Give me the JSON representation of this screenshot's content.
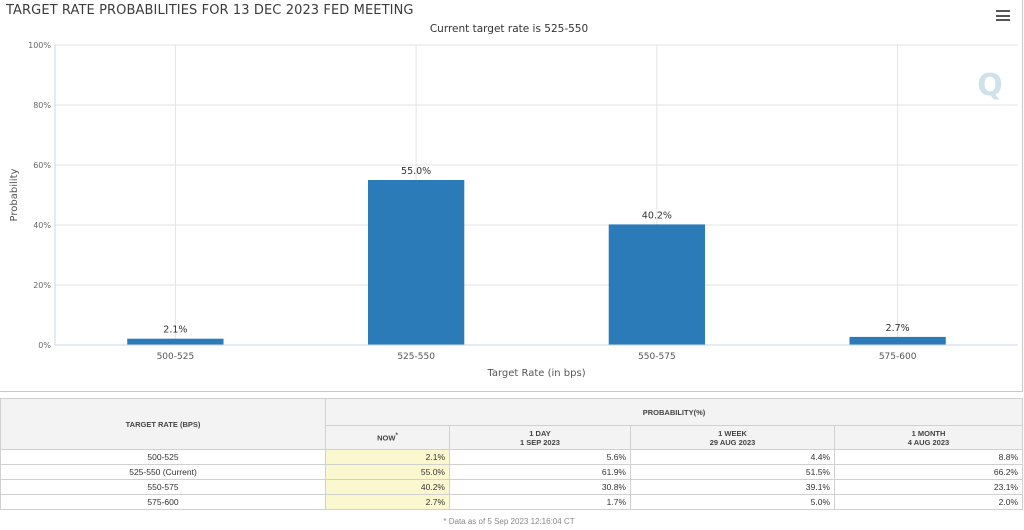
{
  "chart_data": {
    "type": "bar",
    "title": "TARGET RATE PROBABILITIES FOR 13 DEC 2023 FED MEETING",
    "subtitle": "Current target rate is 525-550",
    "categories": [
      "500-525",
      "525-550",
      "550-575",
      "575-600"
    ],
    "values": [
      2.1,
      55.0,
      40.2,
      2.7
    ],
    "data_labels": [
      "2.1%",
      "55.0%",
      "40.2%",
      "2.7%"
    ],
    "xlabel": "Target Rate (in bps)",
    "ylabel": "Probability",
    "ylim": [
      0,
      100
    ],
    "yticks": [
      0,
      20,
      40,
      60,
      80,
      100
    ],
    "ytick_labels": [
      "0%",
      "20%",
      "40%",
      "60%",
      "80%",
      "100%"
    ],
    "grid": true,
    "bar_color": "#2b7bb9"
  },
  "watermark": "Q",
  "menu_icon": "hamburger-menu-icon",
  "table": {
    "rate_header": "TARGET RATE (BPS)",
    "prob_header": "PROBABILITY(%)",
    "col_now": "NOW",
    "col_now_mark": "*",
    "col_1day": "1 DAY",
    "col_1day_date": "1 SEP 2023",
    "col_1week": "1 WEEK",
    "col_1week_date": "29 AUG 2023",
    "col_1month": "1 MONTH",
    "col_1month_date": "4 AUG 2023",
    "rows": [
      {
        "rate": "500-525",
        "now": "2.1%",
        "day": "5.6%",
        "week": "4.4%",
        "month": "8.8%"
      },
      {
        "rate": "525-550 (Current)",
        "now": "55.0%",
        "day": "61.9%",
        "week": "51.5%",
        "month": "66.2%"
      },
      {
        "rate": "550-575",
        "now": "40.2%",
        "day": "30.8%",
        "week": "39.1%",
        "month": "23.1%"
      },
      {
        "rate": "575-600",
        "now": "2.7%",
        "day": "1.7%",
        "week": "5.0%",
        "month": "2.0%"
      }
    ],
    "footnote": "* Data as of 5 Sep 2023 12:16:04 CT"
  }
}
